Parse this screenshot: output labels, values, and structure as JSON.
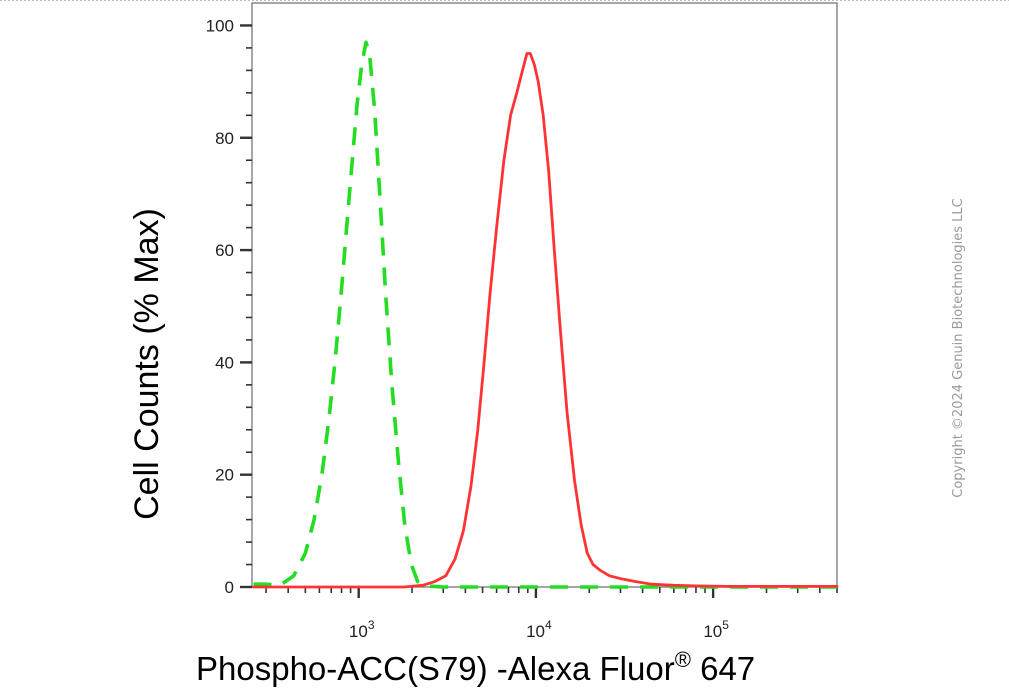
{
  "chart_data": {
    "type": "line",
    "xlabel": "Phospho-ACC(S79) -Alexa Fluor",
    "xlabel_mark": "®",
    "xlabel_suffix": " 647",
    "ylabel": "Cell Counts (% Max)",
    "xscale": "log",
    "xlim": [
      250,
      500000
    ],
    "ylim": [
      0,
      104
    ],
    "yticks": [
      {
        "value": 0,
        "label": "0"
      },
      {
        "value": 20,
        "label": "20"
      },
      {
        "value": 40,
        "label": "40"
      },
      {
        "value": 60,
        "label": "60"
      },
      {
        "value": 80,
        "label": "80"
      },
      {
        "value": 100,
        "label": "100"
      }
    ],
    "xticks": [
      {
        "value": 1000,
        "base": "10",
        "exp": "3"
      },
      {
        "value": 10000,
        "base": "10",
        "exp": "4"
      },
      {
        "value": 100000,
        "base": "10",
        "exp": "5"
      }
    ],
    "grid": false,
    "legend": "none",
    "series": [
      {
        "color": "#22dd22",
        "style": "dashed",
        "x": [
          255,
          300,
          360,
          430,
          500,
          560,
          620,
          680,
          740,
          800,
          860,
          920,
          980,
          1040,
          1100,
          1150,
          1230,
          1320,
          1420,
          1540,
          1680,
          1820,
          1980,
          2150,
          2400,
          3000,
          5000,
          10000,
          20000,
          50000,
          100000,
          200000,
          500000
        ],
        "y": [
          0.5,
          0.5,
          0.3,
          2,
          6,
          12,
          20,
          30,
          41,
          53,
          65,
          76,
          86,
          93,
          97,
          95,
          85,
          69,
          52,
          36,
          22,
          11,
          4,
          1,
          0.2,
          0,
          0,
          0,
          0,
          0,
          0,
          0,
          0
        ]
      },
      {
        "color": "#ff3333",
        "style": "solid",
        "x": [
          255,
          1000,
          1800,
          2300,
          2700,
          3100,
          3500,
          3900,
          4300,
          4700,
          5100,
          5500,
          6000,
          6600,
          7200,
          7800,
          8400,
          8900,
          9300,
          9800,
          10300,
          11000,
          11800,
          12700,
          13800,
          15000,
          16500,
          18000,
          19500,
          21000,
          23000,
          26000,
          30000,
          36000,
          45000,
          60000,
          80000,
          120000,
          200000,
          500000
        ],
        "y": [
          0,
          0,
          0,
          0.3,
          1,
          2,
          5,
          10,
          18,
          28,
          40,
          52,
          64,
          76,
          84,
          88,
          92,
          95,
          95,
          93,
          90,
          84,
          74,
          60,
          45,
          31,
          19,
          11,
          6,
          4,
          3,
          2,
          1.5,
          1,
          0.5,
          0.3,
          0.2,
          0.1,
          0.1,
          0.1
        ]
      }
    ]
  },
  "copyright": "Copyright ©2024 Genuin Biotechnologies LLC"
}
